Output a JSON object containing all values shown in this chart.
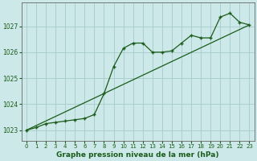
{
  "title": "Graphe pression niveau de la mer (hPa)",
  "background_color": "#cce8e8",
  "grid_color": "#aacece",
  "line_color": "#1a5c1a",
  "xlim": [
    -0.5,
    23.5
  ],
  "ylim": [
    1022.6,
    1027.9
  ],
  "yticks": [
    1023,
    1024,
    1025,
    1026,
    1027
  ],
  "xticks": [
    0,
    1,
    2,
    3,
    4,
    5,
    6,
    7,
    8,
    9,
    10,
    11,
    12,
    13,
    14,
    15,
    16,
    17,
    18,
    19,
    20,
    21,
    22,
    23
  ],
  "trend_x": [
    0,
    23
  ],
  "trend_y": [
    1023.0,
    1027.05
  ],
  "series2_x": [
    0,
    1,
    2,
    3,
    4,
    5,
    6,
    7,
    8,
    9,
    10,
    11,
    12,
    13,
    14,
    15,
    16,
    17,
    18,
    19,
    20,
    21,
    22,
    23
  ],
  "series2_y": [
    1023.0,
    1023.1,
    1023.25,
    1023.3,
    1023.35,
    1023.4,
    1023.45,
    1023.6,
    1024.4,
    1025.45,
    1026.15,
    1026.35,
    1026.35,
    1026.0,
    1026.0,
    1026.05,
    1026.35,
    1026.65,
    1026.55,
    1026.55,
    1027.35,
    1027.5,
    1027.15,
    1027.05
  ],
  "title_fontsize": 7,
  "tick_fontsize": 5.5,
  "xlabel_fontsize": 6.5
}
